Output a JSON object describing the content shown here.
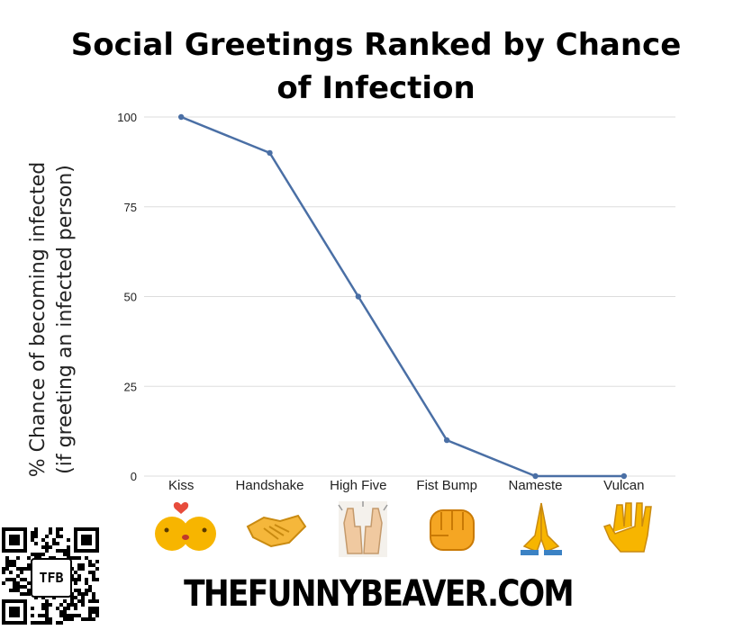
{
  "chart_data": {
    "type": "line",
    "title_lines": [
      "Social Greetings Ranked by Chance",
      "of Infection"
    ],
    "ylabel_lines": [
      "% Chance of becoming infected",
      "(if greeting an infected person)"
    ],
    "categories": [
      "Kiss",
      "Handshake",
      "High Five",
      "Fist Bump",
      "Nameste",
      "Vulcan"
    ],
    "values": [
      100,
      90,
      50,
      10,
      0,
      0
    ],
    "ylim": [
      0,
      100
    ],
    "yticks": [
      0,
      25,
      50,
      75,
      100
    ],
    "grid": true,
    "line_color": "#4a6fa5",
    "grid_color": "#dddddd"
  },
  "icons": [
    "kiss-face-icon",
    "handshake-icon",
    "high-five-icon",
    "fist-bump-icon",
    "folded-hands-icon",
    "vulcan-salute-icon"
  ],
  "qr": {
    "badge_text": "TFB"
  },
  "footer": {
    "brand": "THEFUNNYBEAVER.COM"
  }
}
